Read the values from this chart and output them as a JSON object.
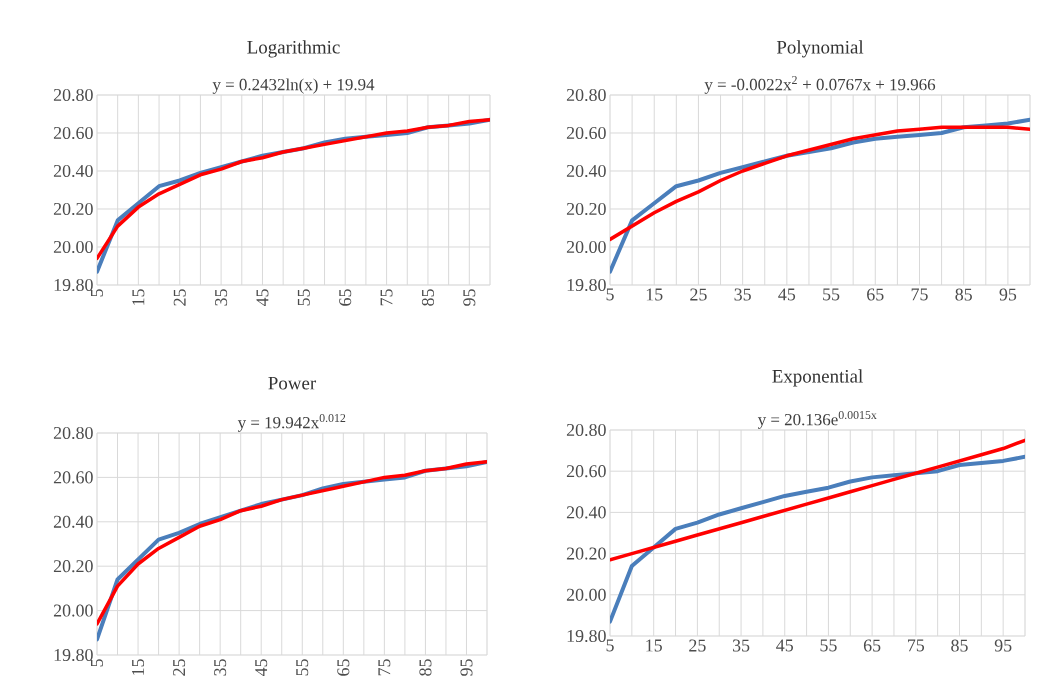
{
  "chart_data": [
    {
      "type": "line",
      "title": "Logarithmic",
      "annotations": [
        "y = 0.2432ln(x) + 19.94"
      ],
      "categories": [
        "5",
        null,
        "15",
        null,
        "25",
        null,
        "35",
        null,
        "45",
        null,
        "55",
        null,
        "65",
        null,
        "75",
        null,
        "85",
        null,
        "95",
        null
      ],
      "ylim": [
        19.8,
        20.8
      ],
      "yticks": [
        {
          "value": 19.8,
          "label": "19.80"
        },
        {
          "value": 20.0,
          "label": "20.00"
        },
        {
          "value": 20.2,
          "label": "20.20"
        },
        {
          "value": 20.4,
          "label": "20.40"
        },
        {
          "value": 20.6,
          "label": "20.60"
        },
        {
          "value": 20.8,
          "label": "20.80"
        }
      ],
      "grid": true,
      "series": [
        {
          "color": "#4a7ebb",
          "values": [
            19.87,
            20.14,
            20.23,
            20.32,
            20.35,
            20.39,
            20.42,
            20.45,
            20.48,
            20.5,
            20.52,
            20.55,
            20.57,
            20.58,
            20.59,
            20.6,
            20.63,
            20.64,
            20.65,
            20.67
          ]
        },
        {
          "color": "#ff0000",
          "values": [
            19.94,
            20.11,
            20.21,
            20.28,
            20.33,
            20.38,
            20.41,
            20.45,
            20.47,
            20.5,
            20.52,
            20.54,
            20.56,
            20.58,
            20.6,
            20.61,
            20.63,
            20.64,
            20.66,
            20.67
          ]
        }
      ]
    },
    {
      "type": "line",
      "title": "Polynomial",
      "annotations": [
        "y = -0.0022x$^{2}$ + 0.0767x + 19.966"
      ],
      "categories": [
        "5",
        null,
        "15",
        null,
        "25",
        null,
        "35",
        null,
        "45",
        null,
        "55",
        null,
        "65",
        null,
        "75",
        null,
        "85",
        null,
        "95",
        null
      ],
      "ylim": [
        19.8,
        20.8
      ],
      "yticks": [
        {
          "value": 19.8,
          "label": "19.80"
        },
        {
          "value": 20.0,
          "label": "20.00"
        },
        {
          "value": 20.2,
          "label": "20.20"
        },
        {
          "value": 20.4,
          "label": "20.40"
        },
        {
          "value": 20.6,
          "label": "20.60"
        },
        {
          "value": 20.8,
          "label": "20.80"
        }
      ],
      "grid": true,
      "series": [
        {
          "color": "#4a7ebb",
          "values": [
            19.87,
            20.14,
            20.23,
            20.32,
            20.35,
            20.39,
            20.42,
            20.45,
            20.48,
            20.5,
            20.52,
            20.55,
            20.57,
            20.58,
            20.59,
            20.6,
            20.63,
            20.64,
            20.65,
            20.67
          ]
        },
        {
          "color": "#ff0000",
          "values": [
            20.04,
            20.11,
            20.18,
            20.24,
            20.29,
            20.35,
            20.4,
            20.44,
            20.48,
            20.51,
            20.54,
            20.57,
            20.59,
            20.61,
            20.62,
            20.63,
            20.63,
            20.63,
            20.63,
            20.62
          ]
        }
      ]
    },
    {
      "type": "line",
      "title": "Power",
      "annotations": [
        "y = 19.942x$^{0.012}$"
      ],
      "categories": [
        "5",
        null,
        "15",
        null,
        "25",
        null,
        "35",
        null,
        "45",
        null,
        "55",
        null,
        "65",
        null,
        "75",
        null,
        "85",
        null,
        "95",
        null
      ],
      "ylim": [
        19.8,
        20.8
      ],
      "yticks": [
        {
          "value": 19.8,
          "label": "19.80"
        },
        {
          "value": 20.0,
          "label": "20.00"
        },
        {
          "value": 20.2,
          "label": "20.20"
        },
        {
          "value": 20.4,
          "label": "20.40"
        },
        {
          "value": 20.6,
          "label": "20.60"
        },
        {
          "value": 20.8,
          "label": "20.80"
        }
      ],
      "grid": true,
      "series": [
        {
          "color": "#4a7ebb",
          "values": [
            19.87,
            20.14,
            20.23,
            20.32,
            20.35,
            20.39,
            20.42,
            20.45,
            20.48,
            20.5,
            20.52,
            20.55,
            20.57,
            20.58,
            20.59,
            20.6,
            20.63,
            20.64,
            20.65,
            20.67
          ]
        },
        {
          "color": "#ff0000",
          "values": [
            19.94,
            20.11,
            20.21,
            20.28,
            20.33,
            20.38,
            20.41,
            20.45,
            20.47,
            20.5,
            20.52,
            20.54,
            20.56,
            20.58,
            20.6,
            20.61,
            20.63,
            20.64,
            20.66,
            20.67
          ]
        }
      ]
    },
    {
      "type": "line",
      "title": "Exponential",
      "annotations": [
        "y = 20.136e$^{0.0015x}$"
      ],
      "categories": [
        "5",
        null,
        "15",
        null,
        "25",
        null,
        "35",
        null,
        "45",
        null,
        "55",
        null,
        "65",
        null,
        "75",
        null,
        "85",
        null,
        "95",
        null
      ],
      "ylim": [
        19.8,
        20.8
      ],
      "yticks": [
        {
          "value": 19.8,
          "label": "19.80"
        },
        {
          "value": 20.0,
          "label": "20.00"
        },
        {
          "value": 20.2,
          "label": "20.20"
        },
        {
          "value": 20.4,
          "label": "20.40"
        },
        {
          "value": 20.6,
          "label": "20.60"
        },
        {
          "value": 20.8,
          "label": "20.80"
        }
      ],
      "grid": true,
      "series": [
        {
          "color": "#4a7ebb",
          "values": [
            19.87,
            20.14,
            20.23,
            20.32,
            20.35,
            20.39,
            20.42,
            20.45,
            20.48,
            20.5,
            20.52,
            20.55,
            20.57,
            20.58,
            20.59,
            20.6,
            20.63,
            20.64,
            20.65,
            20.67
          ]
        },
        {
          "color": "#ff0000",
          "values": [
            20.17,
            20.2,
            20.23,
            20.26,
            20.29,
            20.32,
            20.35,
            20.38,
            20.41,
            20.44,
            20.47,
            20.5,
            20.53,
            20.56,
            20.59,
            20.62,
            20.65,
            20.68,
            20.71,
            20.75
          ]
        }
      ]
    }
  ]
}
